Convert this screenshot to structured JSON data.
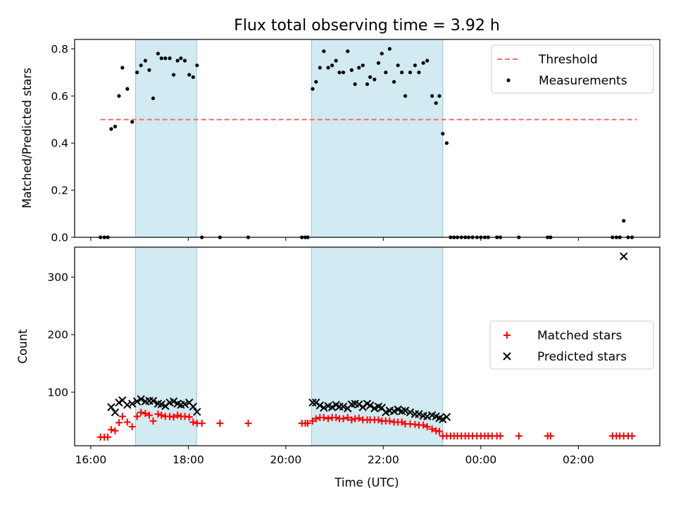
{
  "chart_data": [
    {
      "type": "scatter",
      "title": "Flux total observing time = 3.92 h",
      "xlabel": "",
      "ylabel": "Matched/Predicted stars",
      "ylim": [
        0,
        0.84
      ],
      "yticks": [
        0.0,
        0.2,
        0.4,
        0.6,
        0.8
      ],
      "ytick_labels": [
        "0.0",
        "0.2",
        "0.4",
        "0.6",
        "0.8"
      ],
      "xlim_hours": [
        15.67,
        27.67
      ],
      "shaded_spans_hours": [
        [
          16.92,
          18.17
        ],
        [
          20.53,
          23.22
        ]
      ],
      "shaded_color": "#add8e6",
      "legend_loc": "upper right",
      "threshold": {
        "name": "Threshold",
        "x_hours": [
          16.2,
          27.2
        ],
        "y": 0.5,
        "color": "#ff6b6b",
        "style": "dashed"
      },
      "series": [
        {
          "name": "Measurements",
          "color": "#000000",
          "marker": "dot",
          "points": [
            [
              16.2,
              0
            ],
            [
              16.28,
              0
            ],
            [
              16.35,
              0
            ],
            [
              16.42,
              0.46
            ],
            [
              16.5,
              0.47
            ],
            [
              16.58,
              0.6
            ],
            [
              16.65,
              0.72
            ],
            [
              16.75,
              0.63
            ],
            [
              16.85,
              0.49
            ],
            [
              16.95,
              0.7
            ],
            [
              17.03,
              0.73
            ],
            [
              17.12,
              0.75
            ],
            [
              17.2,
              0.71
            ],
            [
              17.28,
              0.59
            ],
            [
              17.38,
              0.78
            ],
            [
              17.45,
              0.76
            ],
            [
              17.53,
              0.76
            ],
            [
              17.62,
              0.76
            ],
            [
              17.7,
              0.69
            ],
            [
              17.78,
              0.75
            ],
            [
              17.85,
              0.76
            ],
            [
              17.93,
              0.75
            ],
            [
              18.02,
              0.69
            ],
            [
              18.1,
              0.68
            ],
            [
              18.18,
              0.73
            ],
            [
              18.28,
              0
            ],
            [
              18.65,
              0
            ],
            [
              19.23,
              0
            ],
            [
              20.33,
              0
            ],
            [
              20.4,
              0
            ],
            [
              20.45,
              0
            ],
            [
              20.55,
              0.63
            ],
            [
              20.62,
              0.66
            ],
            [
              20.7,
              0.72
            ],
            [
              20.78,
              0.79
            ],
            [
              20.87,
              0.72
            ],
            [
              20.95,
              0.73
            ],
            [
              21.03,
              0.75
            ],
            [
              21.1,
              0.7
            ],
            [
              21.18,
              0.7
            ],
            [
              21.27,
              0.79
            ],
            [
              21.35,
              0.71
            ],
            [
              21.42,
              0.65
            ],
            [
              21.5,
              0.72
            ],
            [
              21.58,
              0.73
            ],
            [
              21.67,
              0.65
            ],
            [
              21.73,
              0.68
            ],
            [
              21.82,
              0.67
            ],
            [
              21.9,
              0.74
            ],
            [
              21.97,
              0.78
            ],
            [
              22.05,
              0.7
            ],
            [
              22.13,
              0.8
            ],
            [
              22.22,
              0.66
            ],
            [
              22.3,
              0.73
            ],
            [
              22.38,
              0.7
            ],
            [
              22.45,
              0.6
            ],
            [
              22.55,
              0.7
            ],
            [
              22.65,
              0.73
            ],
            [
              22.73,
              0.7
            ],
            [
              22.82,
              0.74
            ],
            [
              22.9,
              0.75
            ],
            [
              23.0,
              0.6
            ],
            [
              23.08,
              0.57
            ],
            [
              23.15,
              0.6
            ],
            [
              23.22,
              0.44
            ],
            [
              23.3,
              0.4
            ],
            [
              23.38,
              0
            ],
            [
              23.45,
              0
            ],
            [
              23.52,
              0
            ],
            [
              23.6,
              0
            ],
            [
              23.68,
              0
            ],
            [
              23.75,
              0
            ],
            [
              23.83,
              0
            ],
            [
              23.92,
              0
            ],
            [
              24.0,
              0
            ],
            [
              24.08,
              0
            ],
            [
              24.15,
              0
            ],
            [
              24.33,
              0
            ],
            [
              24.4,
              0
            ],
            [
              24.78,
              0
            ],
            [
              25.37,
              0
            ],
            [
              25.43,
              0
            ],
            [
              26.7,
              0
            ],
            [
              26.78,
              0
            ],
            [
              26.85,
              0
            ],
            [
              26.93,
              0.07
            ],
            [
              27.02,
              0
            ],
            [
              27.1,
              0
            ]
          ]
        }
      ]
    },
    {
      "type": "scatter",
      "title": "",
      "xlabel": "Time (UTC)",
      "ylabel": "Count",
      "ylim": [
        7,
        352
      ],
      "yticks": [
        100,
        200,
        300
      ],
      "ytick_labels": [
        "100",
        "200",
        "300"
      ],
      "xticks_hours": [
        16,
        18,
        20,
        22,
        24,
        26
      ],
      "xtick_labels": [
        "16:00",
        "18:00",
        "20:00",
        "22:00",
        "00:00",
        "02:00"
      ],
      "xlim_hours": [
        15.67,
        27.67
      ],
      "shaded_spans_hours": [
        [
          16.92,
          18.17
        ],
        [
          20.53,
          23.22
        ]
      ],
      "legend_loc": "center right",
      "series": [
        {
          "name": "Matched stars",
          "color": "#ff0000",
          "marker": "plus",
          "points": [
            [
              16.2,
              22
            ],
            [
              16.28,
              22
            ],
            [
              16.35,
              22
            ],
            [
              16.42,
              35
            ],
            [
              16.5,
              33
            ],
            [
              16.58,
              47
            ],
            [
              16.65,
              58
            ],
            [
              16.75,
              48
            ],
            [
              16.85,
              40
            ],
            [
              16.95,
              58
            ],
            [
              17.03,
              65
            ],
            [
              17.12,
              63
            ],
            [
              17.2,
              60
            ],
            [
              17.28,
              50
            ],
            [
              17.38,
              62
            ],
            [
              17.45,
              60
            ],
            [
              17.53,
              58
            ],
            [
              17.62,
              58
            ],
            [
              17.7,
              57
            ],
            [
              17.78,
              60
            ],
            [
              17.85,
              58
            ],
            [
              17.93,
              58
            ],
            [
              18.02,
              57
            ],
            [
              18.1,
              48
            ],
            [
              18.18,
              46
            ],
            [
              18.28,
              46
            ],
            [
              18.65,
              46
            ],
            [
              19.23,
              46
            ],
            [
              20.33,
              46
            ],
            [
              20.4,
              46
            ],
            [
              20.45,
              46
            ],
            [
              20.55,
              50
            ],
            [
              20.62,
              54
            ],
            [
              20.7,
              56
            ],
            [
              20.78,
              56
            ],
            [
              20.87,
              54
            ],
            [
              20.95,
              56
            ],
            [
              21.03,
              56
            ],
            [
              21.1,
              54
            ],
            [
              21.18,
              54
            ],
            [
              21.27,
              56
            ],
            [
              21.35,
              52
            ],
            [
              21.42,
              54
            ],
            [
              21.5,
              55
            ],
            [
              21.58,
              52
            ],
            [
              21.67,
              52
            ],
            [
              21.73,
              52
            ],
            [
              21.82,
              52
            ],
            [
              21.9,
              52
            ],
            [
              21.97,
              50
            ],
            [
              22.05,
              50
            ],
            [
              22.13,
              50
            ],
            [
              22.22,
              48
            ],
            [
              22.3,
              48
            ],
            [
              22.38,
              48
            ],
            [
              22.45,
              45
            ],
            [
              22.55,
              45
            ],
            [
              22.65,
              44
            ],
            [
              22.73,
              43
            ],
            [
              22.82,
              43
            ],
            [
              22.9,
              40
            ],
            [
              23.0,
              36
            ],
            [
              23.08,
              33
            ],
            [
              23.15,
              32
            ],
            [
              23.22,
              24
            ],
            [
              23.3,
              24
            ],
            [
              23.38,
              24
            ],
            [
              23.45,
              24
            ],
            [
              23.52,
              24
            ],
            [
              23.6,
              24
            ],
            [
              23.68,
              24
            ],
            [
              23.75,
              24
            ],
            [
              23.83,
              24
            ],
            [
              23.92,
              24
            ],
            [
              24.0,
              24
            ],
            [
              24.08,
              24
            ],
            [
              24.15,
              24
            ],
            [
              24.23,
              24
            ],
            [
              24.33,
              24
            ],
            [
              24.4,
              24
            ],
            [
              24.78,
              24
            ],
            [
              25.37,
              24
            ],
            [
              25.43,
              24
            ],
            [
              26.7,
              24
            ],
            [
              26.78,
              24
            ],
            [
              26.85,
              24
            ],
            [
              26.93,
              24
            ],
            [
              27.02,
              24
            ],
            [
              27.1,
              24
            ]
          ]
        },
        {
          "name": "Predicted stars",
          "color": "#000000",
          "marker": "x",
          "points": [
            [
              16.42,
              74
            ],
            [
              16.5,
              65
            ],
            [
              16.58,
              82
            ],
            [
              16.65,
              86
            ],
            [
              16.75,
              78
            ],
            [
              16.85,
              80
            ],
            [
              16.95,
              84
            ],
            [
              17.03,
              88
            ],
            [
              17.12,
              84
            ],
            [
              17.2,
              85
            ],
            [
              17.28,
              85
            ],
            [
              17.38,
              80
            ],
            [
              17.45,
              79
            ],
            [
              17.53,
              76
            ],
            [
              17.62,
              82
            ],
            [
              17.7,
              84
            ],
            [
              17.78,
              80
            ],
            [
              17.85,
              78
            ],
            [
              17.93,
              79
            ],
            [
              18.02,
              82
            ],
            [
              18.1,
              75
            ],
            [
              18.18,
              66
            ],
            [
              20.55,
              82
            ],
            [
              20.62,
              82
            ],
            [
              20.7,
              77
            ],
            [
              20.78,
              73
            ],
            [
              20.87,
              76
            ],
            [
              20.95,
              74
            ],
            [
              21.03,
              78
            ],
            [
              21.1,
              75
            ],
            [
              21.18,
              75
            ],
            [
              21.27,
              72
            ],
            [
              21.35,
              79
            ],
            [
              21.42,
              80
            ],
            [
              21.5,
              79
            ],
            [
              21.58,
              74
            ],
            [
              21.67,
              80
            ],
            [
              21.73,
              77
            ],
            [
              21.82,
              72
            ],
            [
              21.9,
              75
            ],
            [
              21.97,
              73
            ],
            [
              22.05,
              65
            ],
            [
              22.13,
              68
            ],
            [
              22.22,
              67
            ],
            [
              22.3,
              70
            ],
            [
              22.38,
              67
            ],
            [
              22.45,
              68
            ],
            [
              22.55,
              65
            ],
            [
              22.65,
              62
            ],
            [
              22.73,
              62
            ],
            [
              22.82,
              59
            ],
            [
              22.9,
              58
            ],
            [
              23.0,
              60
            ],
            [
              23.08,
              58
            ],
            [
              23.15,
              55
            ],
            [
              23.22,
              53
            ],
            [
              23.3,
              57
            ],
            [
              26.93,
              336
            ]
          ]
        }
      ]
    }
  ]
}
